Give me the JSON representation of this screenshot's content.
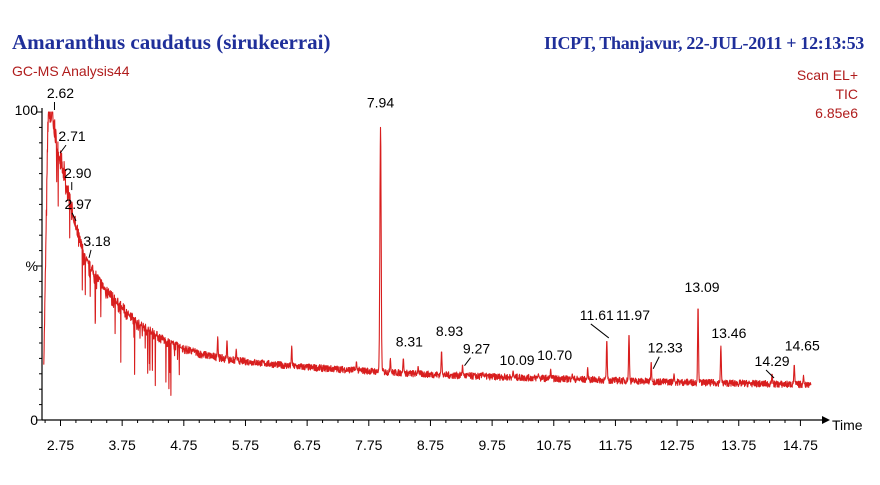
{
  "header": {
    "sample_title": "Amaranthus caudatus (sirukeerrai)",
    "lab_info": "IICPT, Thanjavur, 22-JUL-2011 + 12:13:53",
    "analysis_name": "GC-MS Analysis44",
    "scan_mode": "Scan EL+",
    "trace": "TIC",
    "intensity": "6.85e6"
  },
  "colors": {
    "trace": "#d81e1e",
    "label_text": "#000000",
    "axis": "#000000",
    "title_blue": "#1f2f9a",
    "subtitle_red": "#b01c1c"
  },
  "chart_data": {
    "type": "line",
    "title": "Amaranthus caudatus (sirukeerrai)",
    "xlabel": "Time",
    "ylabel": "%",
    "xlim": [
      2.45,
      15.1
    ],
    "ylim": [
      0,
      100
    ],
    "x_ticks": [
      2.75,
      3.75,
      4.75,
      5.75,
      6.75,
      7.75,
      8.75,
      9.75,
      10.75,
      11.75,
      12.75,
      13.75,
      14.75
    ],
    "x_tick_labels": [
      "2.75",
      "3.75",
      "4.75",
      "5.75",
      "6.75",
      "7.75",
      "8.75",
      "9.75",
      "10.75",
      "11.75",
      "12.75",
      "13.75",
      "14.75"
    ],
    "y_tick_labels": [
      "100",
      "%",
      "0"
    ],
    "baseline": [
      [
        2.48,
        18
      ],
      [
        2.55,
        100
      ],
      [
        2.62,
        96
      ],
      [
        2.71,
        86
      ],
      [
        2.8,
        80
      ],
      [
        2.9,
        70
      ],
      [
        2.97,
        64
      ],
      [
        3.05,
        58
      ],
      [
        3.18,
        50
      ],
      [
        3.4,
        44
      ],
      [
        3.6,
        39
      ],
      [
        3.8,
        35
      ],
      [
        4.0,
        31
      ],
      [
        4.25,
        28
      ],
      [
        4.5,
        25
      ],
      [
        4.75,
        23
      ],
      [
        5.0,
        21.5
      ],
      [
        5.5,
        19.5
      ],
      [
        6.0,
        18.5
      ],
      [
        6.5,
        17.5
      ],
      [
        7.0,
        16.8
      ],
      [
        7.5,
        16.2
      ],
      [
        8.0,
        15.6
      ],
      [
        8.5,
        15.0
      ],
      [
        9.0,
        14.6
      ],
      [
        9.5,
        14.2
      ],
      [
        10.0,
        13.9
      ],
      [
        10.5,
        13.6
      ],
      [
        11.0,
        13.3
      ],
      [
        11.5,
        13.0
      ],
      [
        12.0,
        12.7
      ],
      [
        12.5,
        12.4
      ],
      [
        13.0,
        12.2
      ],
      [
        13.5,
        12.0
      ],
      [
        14.0,
        11.8
      ],
      [
        14.5,
        11.6
      ],
      [
        14.9,
        11.5
      ]
    ],
    "minor_peaks": [
      [
        2.5,
        38
      ],
      [
        2.58,
        92
      ],
      [
        2.66,
        90
      ],
      [
        2.75,
        80
      ],
      [
        2.84,
        70
      ],
      [
        2.93,
        64
      ],
      [
        3.02,
        60
      ],
      [
        3.1,
        56
      ],
      [
        3.26,
        49
      ],
      [
        3.35,
        45
      ],
      [
        3.45,
        42
      ],
      [
        3.55,
        40
      ],
      [
        3.65,
        38
      ],
      [
        3.75,
        36
      ],
      [
        3.86,
        34
      ],
      [
        3.96,
        32
      ],
      [
        4.06,
        31
      ],
      [
        4.17,
        29
      ],
      [
        4.3,
        27
      ],
      [
        4.4,
        26
      ],
      [
        4.55,
        25
      ],
      [
        4.7,
        23.5
      ],
      [
        4.9,
        22.5
      ],
      [
        5.3,
        27
      ],
      [
        5.45,
        26
      ],
      [
        5.6,
        23
      ],
      [
        6.5,
        24
      ],
      [
        7.55,
        19
      ],
      [
        8.1,
        20
      ],
      [
        8.31,
        20
      ],
      [
        8.55,
        17.5
      ],
      [
        8.93,
        22.5
      ],
      [
        9.27,
        18
      ],
      [
        9.6,
        15.5
      ],
      [
        10.09,
        16
      ],
      [
        10.5,
        15
      ],
      [
        10.7,
        16.5
      ],
      [
        11.05,
        15
      ],
      [
        11.3,
        17
      ],
      [
        11.61,
        19
      ],
      [
        11.97,
        28
      ],
      [
        12.33,
        19
      ],
      [
        12.7,
        15
      ],
      [
        13.09,
        37
      ],
      [
        13.46,
        24
      ],
      [
        14.29,
        15
      ],
      [
        14.65,
        18
      ],
      [
        14.8,
        14.5
      ]
    ],
    "peaks": [
      {
        "rt": 2.62,
        "value": 100
      },
      {
        "rt": 2.71,
        "value": 86
      },
      {
        "rt": 2.9,
        "value": 74
      },
      {
        "rt": 2.97,
        "value": 64
      },
      {
        "rt": 3.18,
        "value": 52
      },
      {
        "rt": 7.94,
        "value": 95
      },
      {
        "rt": 8.31,
        "value": 20
      },
      {
        "rt": 8.93,
        "value": 22
      },
      {
        "rt": 9.27,
        "value": 17
      },
      {
        "rt": 10.09,
        "value": 14
      },
      {
        "rt": 10.7,
        "value": 15
      },
      {
        "rt": 11.61,
        "value": 26
      },
      {
        "rt": 11.97,
        "value": 28
      },
      {
        "rt": 12.33,
        "value": 16
      },
      {
        "rt": 13.09,
        "value": 37
      },
      {
        "rt": 13.46,
        "value": 24
      },
      {
        "rt": 14.29,
        "value": 13
      },
      {
        "rt": 14.65,
        "value": 18
      }
    ],
    "peak_labels": [
      {
        "text": "2.62",
        "rt": 2.62
      },
      {
        "text": "2.71",
        "rt": 2.71
      },
      {
        "text": "2.90",
        "rt": 2.9
      },
      {
        "text": "2.97",
        "rt": 2.97
      },
      {
        "text": "3.18",
        "rt": 3.18
      },
      {
        "text": "7.94",
        "rt": 7.94
      },
      {
        "text": "8.31",
        "rt": 8.31
      },
      {
        "text": "8.93",
        "rt": 8.93
      },
      {
        "text": "9.27",
        "rt": 9.27
      },
      {
        "text": "10.09",
        "rt": 10.09
      },
      {
        "text": "10.70",
        "rt": 10.7
      },
      {
        "text": "11.61",
        "rt": 11.61
      },
      {
        "text": "11.97",
        "rt": 11.97
      },
      {
        "text": "12.33",
        "rt": 12.33
      },
      {
        "text": "13.09",
        "rt": 13.09
      },
      {
        "text": "13.46",
        "rt": 13.46
      },
      {
        "text": "14.29",
        "rt": 14.29
      },
      {
        "text": "14.65",
        "rt": 14.65
      }
    ]
  }
}
